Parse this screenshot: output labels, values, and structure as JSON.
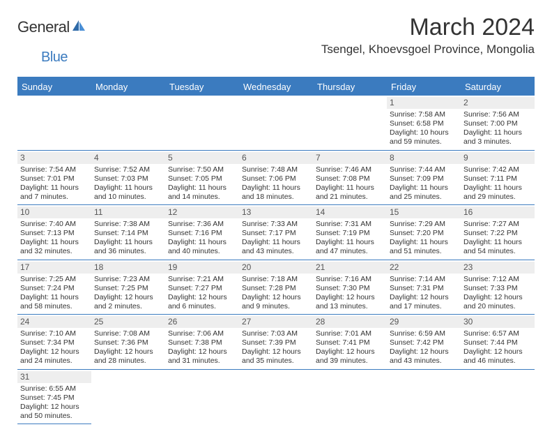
{
  "logo": {
    "word1": "General",
    "word2": "Blue"
  },
  "title": "March 2024",
  "location": "Tsengel, Khoevsgoel Province, Mongolia",
  "colors": {
    "accent": "#3b7bbf",
    "header_text": "#ffffff",
    "daynum_bg": "#eeeeee",
    "text": "#333333"
  },
  "day_headers": [
    "Sunday",
    "Monday",
    "Tuesday",
    "Wednesday",
    "Thursday",
    "Friday",
    "Saturday"
  ],
  "weeks": [
    [
      null,
      null,
      null,
      null,
      null,
      {
        "n": "1",
        "sr": "Sunrise: 7:58 AM",
        "ss": "Sunset: 6:58 PM",
        "dl": "Daylight: 10 hours and 59 minutes."
      },
      {
        "n": "2",
        "sr": "Sunrise: 7:56 AM",
        "ss": "Sunset: 7:00 PM",
        "dl": "Daylight: 11 hours and 3 minutes."
      }
    ],
    [
      {
        "n": "3",
        "sr": "Sunrise: 7:54 AM",
        "ss": "Sunset: 7:01 PM",
        "dl": "Daylight: 11 hours and 7 minutes."
      },
      {
        "n": "4",
        "sr": "Sunrise: 7:52 AM",
        "ss": "Sunset: 7:03 PM",
        "dl": "Daylight: 11 hours and 10 minutes."
      },
      {
        "n": "5",
        "sr": "Sunrise: 7:50 AM",
        "ss": "Sunset: 7:05 PM",
        "dl": "Daylight: 11 hours and 14 minutes."
      },
      {
        "n": "6",
        "sr": "Sunrise: 7:48 AM",
        "ss": "Sunset: 7:06 PM",
        "dl": "Daylight: 11 hours and 18 minutes."
      },
      {
        "n": "7",
        "sr": "Sunrise: 7:46 AM",
        "ss": "Sunset: 7:08 PM",
        "dl": "Daylight: 11 hours and 21 minutes."
      },
      {
        "n": "8",
        "sr": "Sunrise: 7:44 AM",
        "ss": "Sunset: 7:09 PM",
        "dl": "Daylight: 11 hours and 25 minutes."
      },
      {
        "n": "9",
        "sr": "Sunrise: 7:42 AM",
        "ss": "Sunset: 7:11 PM",
        "dl": "Daylight: 11 hours and 29 minutes."
      }
    ],
    [
      {
        "n": "10",
        "sr": "Sunrise: 7:40 AM",
        "ss": "Sunset: 7:13 PM",
        "dl": "Daylight: 11 hours and 32 minutes."
      },
      {
        "n": "11",
        "sr": "Sunrise: 7:38 AM",
        "ss": "Sunset: 7:14 PM",
        "dl": "Daylight: 11 hours and 36 minutes."
      },
      {
        "n": "12",
        "sr": "Sunrise: 7:36 AM",
        "ss": "Sunset: 7:16 PM",
        "dl": "Daylight: 11 hours and 40 minutes."
      },
      {
        "n": "13",
        "sr": "Sunrise: 7:33 AM",
        "ss": "Sunset: 7:17 PM",
        "dl": "Daylight: 11 hours and 43 minutes."
      },
      {
        "n": "14",
        "sr": "Sunrise: 7:31 AM",
        "ss": "Sunset: 7:19 PM",
        "dl": "Daylight: 11 hours and 47 minutes."
      },
      {
        "n": "15",
        "sr": "Sunrise: 7:29 AM",
        "ss": "Sunset: 7:20 PM",
        "dl": "Daylight: 11 hours and 51 minutes."
      },
      {
        "n": "16",
        "sr": "Sunrise: 7:27 AM",
        "ss": "Sunset: 7:22 PM",
        "dl": "Daylight: 11 hours and 54 minutes."
      }
    ],
    [
      {
        "n": "17",
        "sr": "Sunrise: 7:25 AM",
        "ss": "Sunset: 7:24 PM",
        "dl": "Daylight: 11 hours and 58 minutes."
      },
      {
        "n": "18",
        "sr": "Sunrise: 7:23 AM",
        "ss": "Sunset: 7:25 PM",
        "dl": "Daylight: 12 hours and 2 minutes."
      },
      {
        "n": "19",
        "sr": "Sunrise: 7:21 AM",
        "ss": "Sunset: 7:27 PM",
        "dl": "Daylight: 12 hours and 6 minutes."
      },
      {
        "n": "20",
        "sr": "Sunrise: 7:18 AM",
        "ss": "Sunset: 7:28 PM",
        "dl": "Daylight: 12 hours and 9 minutes."
      },
      {
        "n": "21",
        "sr": "Sunrise: 7:16 AM",
        "ss": "Sunset: 7:30 PM",
        "dl": "Daylight: 12 hours and 13 minutes."
      },
      {
        "n": "22",
        "sr": "Sunrise: 7:14 AM",
        "ss": "Sunset: 7:31 PM",
        "dl": "Daylight: 12 hours and 17 minutes."
      },
      {
        "n": "23",
        "sr": "Sunrise: 7:12 AM",
        "ss": "Sunset: 7:33 PM",
        "dl": "Daylight: 12 hours and 20 minutes."
      }
    ],
    [
      {
        "n": "24",
        "sr": "Sunrise: 7:10 AM",
        "ss": "Sunset: 7:34 PM",
        "dl": "Daylight: 12 hours and 24 minutes."
      },
      {
        "n": "25",
        "sr": "Sunrise: 7:08 AM",
        "ss": "Sunset: 7:36 PM",
        "dl": "Daylight: 12 hours and 28 minutes."
      },
      {
        "n": "26",
        "sr": "Sunrise: 7:06 AM",
        "ss": "Sunset: 7:38 PM",
        "dl": "Daylight: 12 hours and 31 minutes."
      },
      {
        "n": "27",
        "sr": "Sunrise: 7:03 AM",
        "ss": "Sunset: 7:39 PM",
        "dl": "Daylight: 12 hours and 35 minutes."
      },
      {
        "n": "28",
        "sr": "Sunrise: 7:01 AM",
        "ss": "Sunset: 7:41 PM",
        "dl": "Daylight: 12 hours and 39 minutes."
      },
      {
        "n": "29",
        "sr": "Sunrise: 6:59 AM",
        "ss": "Sunset: 7:42 PM",
        "dl": "Daylight: 12 hours and 43 minutes."
      },
      {
        "n": "30",
        "sr": "Sunrise: 6:57 AM",
        "ss": "Sunset: 7:44 PM",
        "dl": "Daylight: 12 hours and 46 minutes."
      }
    ],
    [
      {
        "n": "31",
        "sr": "Sunrise: 6:55 AM",
        "ss": "Sunset: 7:45 PM",
        "dl": "Daylight: 12 hours and 50 minutes."
      },
      null,
      null,
      null,
      null,
      null,
      null
    ]
  ]
}
